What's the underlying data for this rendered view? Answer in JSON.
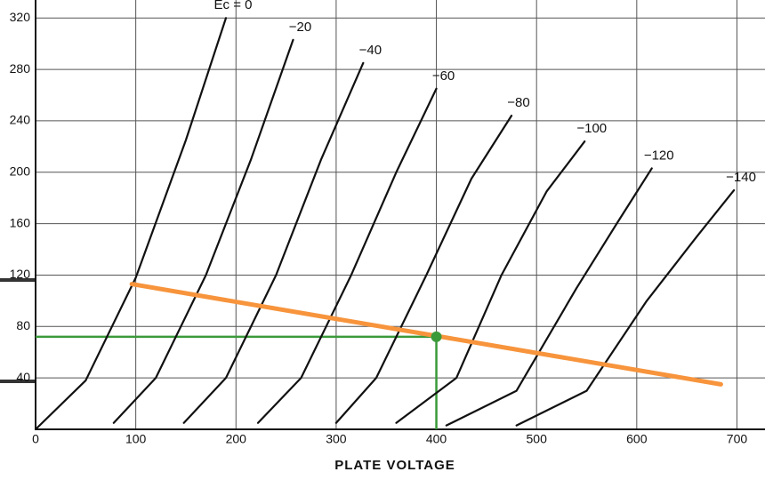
{
  "chart_data": {
    "type": "line",
    "xlabel": "PLATE VOLTAGE",
    "xlim": [
      0,
      728
    ],
    "ylim": [
      0,
      334
    ],
    "xticks": [
      0,
      100,
      200,
      300,
      400,
      500,
      600,
      700
    ],
    "yticks": [
      40,
      80,
      120,
      160,
      200,
      240,
      280,
      320
    ],
    "grid": true,
    "series": [
      {
        "name": "Ec = 0",
        "color": "#111111",
        "x": [
          0,
          50,
          100,
          150,
          190
        ],
        "values": [
          0,
          38,
          118,
          225,
          320
        ]
      },
      {
        "name": "−20",
        "color": "#111111",
        "x": [
          78,
          120,
          170,
          215,
          257
        ],
        "values": [
          5,
          40,
          120,
          210,
          303
        ]
      },
      {
        "name": "−40",
        "color": "#111111",
        "x": [
          148,
          190,
          240,
          285,
          327
        ],
        "values": [
          5,
          40,
          120,
          210,
          285
        ]
      },
      {
        "name": "−60",
        "color": "#111111",
        "x": [
          222,
          265,
          315,
          360,
          400
        ],
        "values": [
          5,
          40,
          120,
          200,
          265
        ]
      },
      {
        "name": "−80",
        "color": "#111111",
        "x": [
          300,
          340,
          390,
          435,
          475
        ],
        "values": [
          5,
          40,
          120,
          195,
          244
        ]
      },
      {
        "name": "−100",
        "color": "#111111",
        "x": [
          360,
          420,
          465,
          510,
          548
        ],
        "values": [
          5,
          40,
          120,
          185,
          224
        ]
      },
      {
        "name": "−120",
        "color": "#111111",
        "x": [
          410,
          480,
          540,
          580,
          615
        ],
        "values": [
          3,
          30,
          110,
          160,
          203
        ]
      },
      {
        "name": "−140",
        "color": "#111111",
        "x": [
          480,
          550,
          610,
          660,
          697
        ],
        "values": [
          3,
          30,
          100,
          150,
          186
        ]
      },
      {
        "color": "#f7943c",
        "x": [
          96,
          684
        ],
        "values": [
          113,
          35
        ]
      }
    ],
    "operating_point": {
      "x": 400,
      "y": 72,
      "color": "#3a9a3a"
    }
  }
}
